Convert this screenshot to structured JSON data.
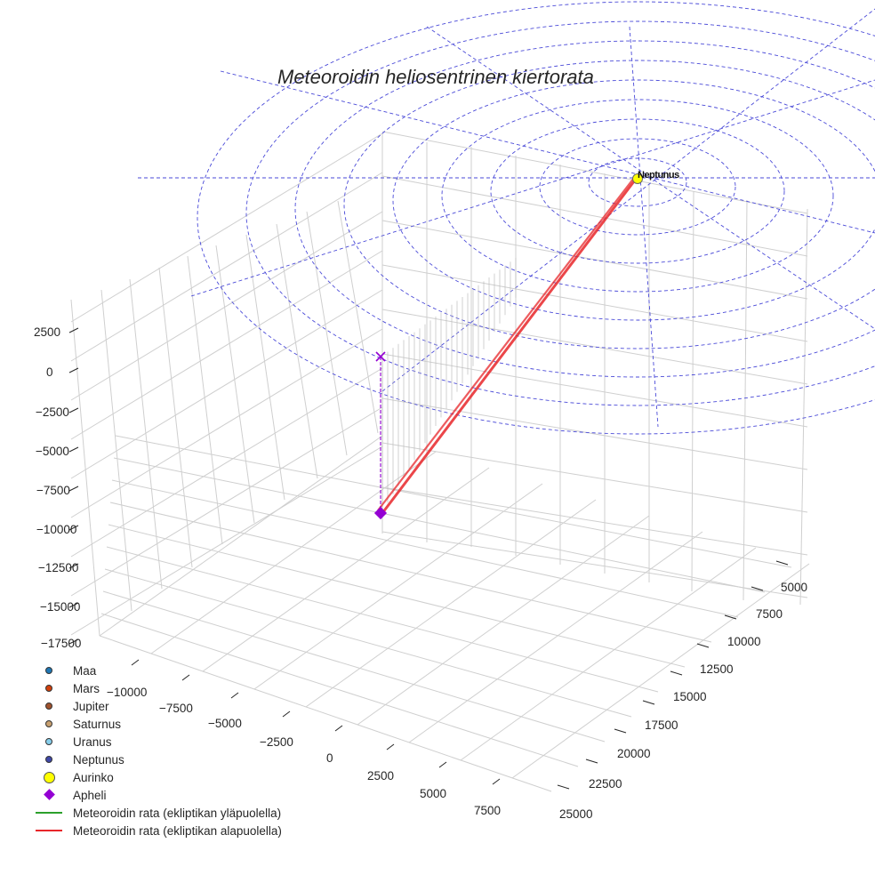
{
  "chart_data": {
    "type": "scatter3d",
    "title": "Meteoroidin heliosentrinen kiertorata",
    "axes": {
      "x": {
        "label": "",
        "ticks": [
          "−10000",
          "−7500",
          "−5000",
          "−2500",
          "0",
          "2500",
          "5000",
          "7500"
        ],
        "range": [
          -11000,
          9000
        ]
      },
      "y": {
        "label": "",
        "ticks": [
          "5000",
          "7500",
          "10000",
          "12500",
          "15000",
          "17500",
          "20000",
          "22500",
          "25000"
        ],
        "range": [
          4000,
          26000
        ]
      },
      "z": {
        "label": "",
        "ticks": [
          "2500",
          "0",
          "−2500",
          "−5000",
          "−7500",
          "−10000",
          "−12500",
          "−15000",
          "−17500"
        ],
        "range": [
          -18500,
          3500
        ]
      },
      "grid": true
    },
    "legend": {
      "position": "lower left",
      "entries": [
        {
          "label": "Maa",
          "marker": "dot",
          "color": "#1f77b4"
        },
        {
          "label": "Mars",
          "marker": "dot",
          "color": "#d2400c"
        },
        {
          "label": "Jupiter",
          "marker": "dot",
          "color": "#a0522d"
        },
        {
          "label": "Saturnus",
          "marker": "dot",
          "color": "#c8a070"
        },
        {
          "label": "Uranus",
          "marker": "dot",
          "color": "#87ceeb"
        },
        {
          "label": "Neptunus",
          "marker": "dot",
          "color": "#3f48a8"
        },
        {
          "label": "Aurinko",
          "marker": "bigdot",
          "color": "#ffff00"
        },
        {
          "label": "Apheli",
          "marker": "diamond",
          "color": "#9400d3"
        },
        {
          "label": "Meteoroidin rata (ekliptikan yläpuolella)",
          "marker": "line",
          "color": "#2ca02c"
        },
        {
          "label": "Meteoroidin rata (ekliptikan alapuolella)",
          "marker": "line",
          "color": "#e8262a"
        }
      ]
    },
    "series": [
      {
        "name": "Aurinko",
        "type": "point",
        "position": [
          0,
          0,
          0
        ],
        "color": "#ffff00"
      },
      {
        "name": "Planets (Maa, Mars, Jupiter, Saturnus, Uranus, Neptunus)",
        "type": "points",
        "note": "clustered at Sun, labels overlap",
        "position_approx": [
          0,
          0,
          0
        ]
      },
      {
        "name": "Apheli",
        "type": "point",
        "marker": "diamond",
        "color": "#9400d3",
        "position_approx": [
          0,
          16000,
          -17000
        ]
      },
      {
        "name": "Apheli projection on ecliptic",
        "type": "point",
        "marker": "x",
        "color": "#9400d3",
        "position_approx": [
          0,
          16000,
          0
        ]
      },
      {
        "name": "Meteoroidin rata (ekliptikan alapuolella)",
        "type": "line",
        "color": "#e8262a",
        "from": [
          0,
          0,
          0
        ],
        "to_approx": [
          0,
          16000,
          -17000
        ]
      }
    ],
    "ecliptic_reference": {
      "style": "dashed",
      "color": "#4a4ad8",
      "rings": 9,
      "radial_lines": 8
    }
  },
  "sun_label": "Neptunus"
}
